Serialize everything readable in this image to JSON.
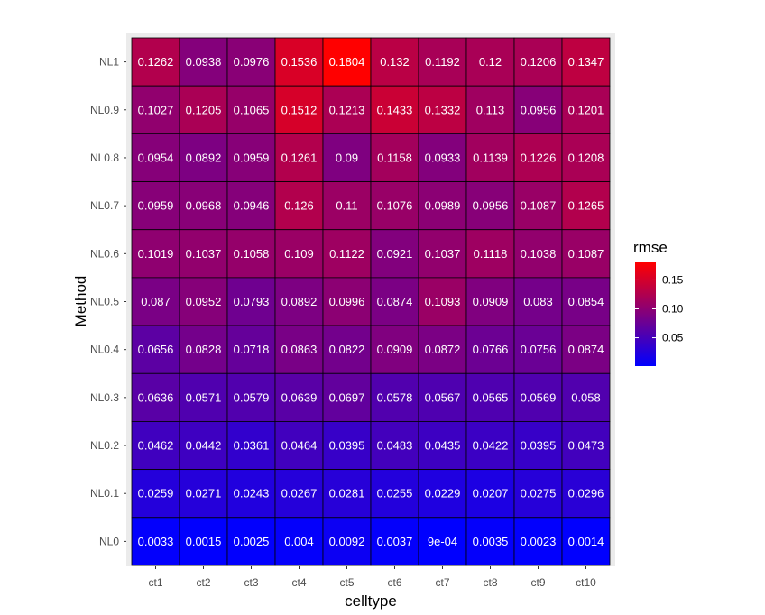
{
  "chart_data": {
    "type": "heatmap",
    "xlabel": "celltype",
    "ylabel": "Method",
    "x_categories": [
      "ct1",
      "ct2",
      "ct3",
      "ct4",
      "ct5",
      "ct6",
      "ct7",
      "ct8",
      "ct9",
      "ct10"
    ],
    "y_categories": [
      "NL1",
      "NL0.9",
      "NL0.8",
      "NL0.7",
      "NL0.6",
      "NL0.5",
      "NL0.4",
      "NL0.3",
      "NL0.2",
      "NL0.1",
      "NL0"
    ],
    "values": [
      [
        0.1262,
        0.0938,
        0.0976,
        0.1536,
        0.1804,
        0.132,
        0.1192,
        0.12,
        0.1206,
        0.1347
      ],
      [
        0.1027,
        0.1205,
        0.1065,
        0.1512,
        0.1213,
        0.1433,
        0.1332,
        0.113,
        0.0956,
        0.1201
      ],
      [
        0.0954,
        0.0892,
        0.0959,
        0.1261,
        0.09,
        0.1158,
        0.0933,
        0.1139,
        0.1226,
        0.1208
      ],
      [
        0.0959,
        0.0968,
        0.0946,
        0.126,
        0.11,
        0.1076,
        0.0989,
        0.0956,
        0.1087,
        0.1265
      ],
      [
        0.1019,
        0.1037,
        0.1058,
        0.109,
        0.1122,
        0.0921,
        0.1037,
        0.1118,
        0.1038,
        0.1087
      ],
      [
        0.087,
        0.0952,
        0.0793,
        0.0892,
        0.0996,
        0.0874,
        0.1093,
        0.0909,
        0.083,
        0.0854
      ],
      [
        0.0656,
        0.0828,
        0.0718,
        0.0863,
        0.0822,
        0.0909,
        0.0872,
        0.0766,
        0.0756,
        0.0874
      ],
      [
        0.0636,
        0.0571,
        0.0579,
        0.0639,
        0.0697,
        0.0578,
        0.0567,
        0.0565,
        0.0569,
        0.058
      ],
      [
        0.0462,
        0.0442,
        0.0361,
        0.0464,
        0.0395,
        0.0483,
        0.0435,
        0.0422,
        0.0395,
        0.0473
      ],
      [
        0.0259,
        0.0271,
        0.0243,
        0.0267,
        0.0281,
        0.0255,
        0.0229,
        0.0207,
        0.0275,
        0.0296
      ],
      [
        0.0033,
        0.0015,
        0.0025,
        0.004,
        0.0092,
        0.0037,
        0.0009,
        0.0035,
        0.0023,
        0.0014
      ]
    ],
    "cell_labels": [
      [
        "0.1262",
        "0.0938",
        "0.0976",
        "0.1536",
        "0.1804",
        "0.132",
        "0.1192",
        "0.12",
        "0.1206",
        "0.1347"
      ],
      [
        "0.1027",
        "0.1205",
        "0.1065",
        "0.1512",
        "0.1213",
        "0.1433",
        "0.1332",
        "0.113",
        "0.0956",
        "0.1201"
      ],
      [
        "0.0954",
        "0.0892",
        "0.0959",
        "0.1261",
        "0.09",
        "0.1158",
        "0.0933",
        "0.1139",
        "0.1226",
        "0.1208"
      ],
      [
        "0.0959",
        "0.0968",
        "0.0946",
        "0.126",
        "0.11",
        "0.1076",
        "0.0989",
        "0.0956",
        "0.1087",
        "0.1265"
      ],
      [
        "0.1019",
        "0.1037",
        "0.1058",
        "0.109",
        "0.1122",
        "0.0921",
        "0.1037",
        "0.1118",
        "0.1038",
        "0.1087"
      ],
      [
        "0.087",
        "0.0952",
        "0.0793",
        "0.0892",
        "0.0996",
        "0.0874",
        "0.1093",
        "0.0909",
        "0.083",
        "0.0854"
      ],
      [
        "0.0656",
        "0.0828",
        "0.0718",
        "0.0863",
        "0.0822",
        "0.0909",
        "0.0872",
        "0.0766",
        "0.0756",
        "0.0874"
      ],
      [
        "0.0636",
        "0.0571",
        "0.0579",
        "0.0639",
        "0.0697",
        "0.0578",
        "0.0567",
        "0.0565",
        "0.0569",
        "0.058"
      ],
      [
        "0.0462",
        "0.0442",
        "0.0361",
        "0.0464",
        "0.0395",
        "0.0483",
        "0.0435",
        "0.0422",
        "0.0395",
        "0.0473"
      ],
      [
        "0.0259",
        "0.0271",
        "0.0243",
        "0.0267",
        "0.0281",
        "0.0255",
        "0.0229",
        "0.0207",
        "0.0275",
        "0.0296"
      ],
      [
        "0.0033",
        "0.0015",
        "0.0025",
        "0.004",
        "0.0092",
        "0.0037",
        "9e-04",
        "0.0035",
        "0.0023",
        "0.0014"
      ]
    ],
    "color_scale": {
      "low_color": "#0000ff",
      "high_color": "#ff0000",
      "min": 0.0009,
      "max": 0.1804
    },
    "legend": {
      "title": "rmse",
      "ticks": [
        0.05,
        0.1,
        0.15
      ],
      "tick_labels": [
        "0.05",
        "0.10",
        "0.15"
      ],
      "position": "right"
    },
    "panel_background": "#ebebeb",
    "cell_border_color": "#000000"
  }
}
